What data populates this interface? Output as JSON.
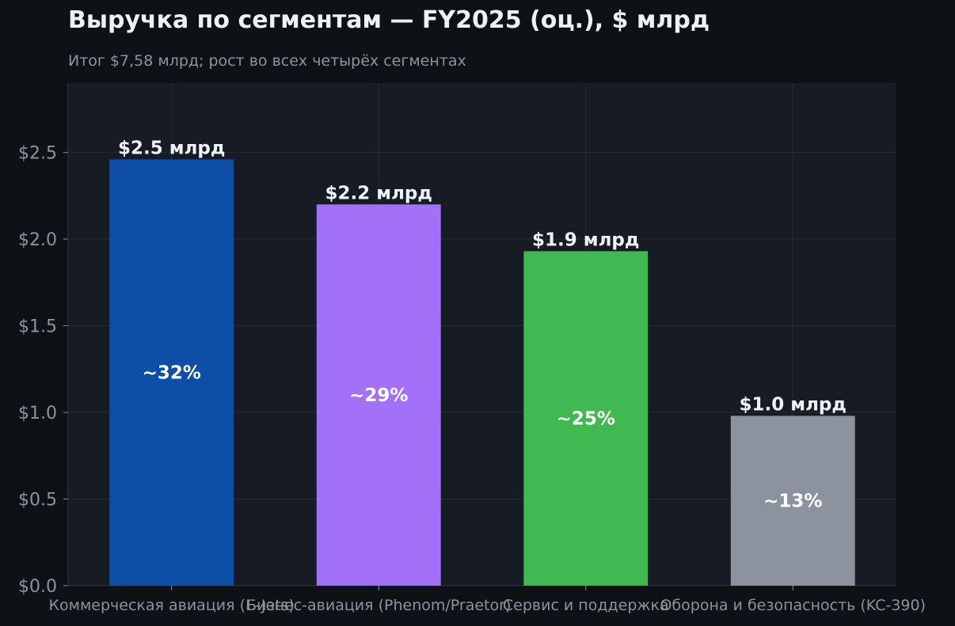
{
  "chart_data": {
    "type": "bar",
    "title": "Выручка по сегментам — FY2025 (оц.), $ млрд",
    "subtitle": "Итог $7,58 млрд; рост во всех четырёх сегментах",
    "categories": [
      "Коммерческая авиация (E-Jets)",
      "Бизнес-авиация (Phenom/Praetor)",
      "Сервис и поддержка",
      "Оборона и безопасность (KC-390)"
    ],
    "values": [
      2.46,
      2.2,
      1.93,
      0.98
    ],
    "value_labels": [
      "$2.5 млрд",
      "$2.2 млрд",
      "$1.9 млрд",
      "$1.0 млрд"
    ],
    "share_labels": [
      "~32%",
      "~29%",
      "~25%",
      "~13%"
    ],
    "colors": [
      "#0d4ea6",
      "#a371f7",
      "#3fb950",
      "#8b949e"
    ],
    "ylim": [
      0,
      2.9
    ],
    "yticks": [
      0,
      0.5,
      1.0,
      1.5,
      2.0,
      2.5
    ],
    "ytick_labels": [
      "$0.0",
      "$0.5",
      "$1.0",
      "$1.5",
      "$2.0",
      "$2.5"
    ],
    "grid": true,
    "xlabel": "",
    "ylabel": ""
  }
}
